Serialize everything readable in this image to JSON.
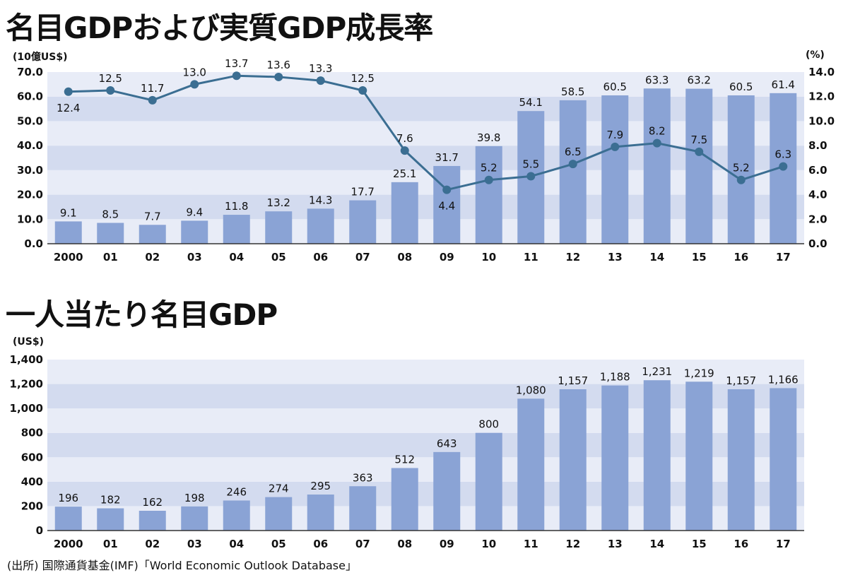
{
  "chart_data": [
    {
      "type": "bar+line",
      "title": "名目GDPおよび実質GDP成長率",
      "ylabel": "(10億US$)",
      "y2label": "(%)",
      "ylim": [
        0,
        70
      ],
      "y2lim": [
        0,
        14
      ],
      "yticks": [
        "0.0",
        "10.0",
        "20.0",
        "30.0",
        "40.0",
        "50.0",
        "60.0",
        "70.0"
      ],
      "y2ticks": [
        "0.0",
        "2.0",
        "4.0",
        "6.0",
        "8.0",
        "10.0",
        "12.0",
        "14.0"
      ],
      "categories": [
        "2000",
        "01",
        "02",
        "03",
        "04",
        "05",
        "06",
        "07",
        "08",
        "09",
        "10",
        "11",
        "12",
        "13",
        "14",
        "15",
        "16",
        "17"
      ],
      "series": [
        {
          "name": "名目GDP",
          "kind": "bar",
          "axis": "left",
          "values": [
            9.1,
            8.5,
            7.7,
            9.4,
            11.8,
            13.2,
            14.3,
            17.7,
            25.1,
            31.7,
            39.8,
            54.1,
            58.5,
            60.5,
            63.3,
            63.2,
            60.5,
            61.4
          ],
          "labels": [
            "9.1",
            "8.5",
            "7.7",
            "9.4",
            "11.8",
            "13.2",
            "14.3",
            "17.7",
            "25.1",
            "31.7",
            "39.8",
            "54.1",
            "58.5",
            "60.5",
            "63.3",
            "63.2",
            "60.5",
            "61.4"
          ]
        },
        {
          "name": "実質GDP成長率",
          "kind": "line",
          "axis": "right",
          "values": [
            12.4,
            12.5,
            11.7,
            13.0,
            13.7,
            13.6,
            13.3,
            12.5,
            7.6,
            4.4,
            5.2,
            5.5,
            6.5,
            7.9,
            8.2,
            7.5,
            5.2,
            6.3
          ],
          "labels": [
            "12.4",
            "12.5",
            "11.7",
            "13.0",
            "13.7",
            "13.6",
            "13.3",
            "12.5",
            "7.6",
            "4.4",
            "5.2",
            "5.5",
            "6.5",
            "7.9",
            "8.2",
            "7.5",
            "5.2",
            "6.3"
          ]
        }
      ],
      "grid": "alternating bands"
    },
    {
      "type": "bar",
      "title": "一人当たり名目GDP",
      "ylabel": "(US$)",
      "ylim": [
        0,
        1400
      ],
      "yticks": [
        "0",
        "200",
        "400",
        "600",
        "800",
        "1,000",
        "1,200",
        "1,400"
      ],
      "categories": [
        "2000",
        "01",
        "02",
        "03",
        "04",
        "05",
        "06",
        "07",
        "08",
        "09",
        "10",
        "11",
        "12",
        "13",
        "14",
        "15",
        "16",
        "17"
      ],
      "values": [
        196,
        182,
        162,
        198,
        246,
        274,
        295,
        363,
        512,
        643,
        800,
        1080,
        1157,
        1188,
        1231,
        1219,
        1157,
        1166
      ],
      "labels": [
        "196",
        "182",
        "162",
        "198",
        "246",
        "274",
        "295",
        "363",
        "512",
        "643",
        "800",
        "1,080",
        "1,157",
        "1,188",
        "1,231",
        "1,219",
        "1,157",
        "1,166"
      ],
      "grid": "alternating bands"
    }
  ],
  "source": "(出所) 国際通貨基金(IMF)「World Economic Outlook Database」",
  "colors": {
    "bar": "#8aa3d5",
    "line": "#3b6e92",
    "band_light": "#e8ecf7",
    "band_dark": "#d3dbef"
  }
}
